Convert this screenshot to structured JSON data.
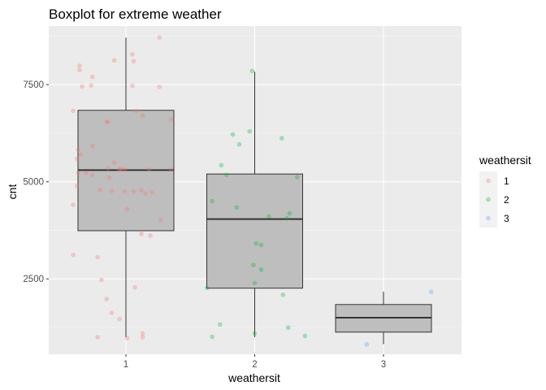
{
  "chart_data": {
    "type": "boxplot",
    "title": "Boxplot for extreme weather",
    "xlabel": "weathersit",
    "ylabel": "cnt",
    "categories": [
      "1",
      "2",
      "3"
    ],
    "y_ticks": [
      2500,
      5000,
      7500
    ],
    "y_tick_labels": [
      "2500",
      "5000",
      "7500"
    ],
    "ylim": [
      560,
      9010
    ],
    "grid": true,
    "legend": {
      "title": "weathersit",
      "position": "right",
      "entries": [
        {
          "label": "1",
          "color": "#F8766D"
        },
        {
          "label": "2",
          "color": "#00BA38"
        },
        {
          "label": "3",
          "color": "#619CFF"
        }
      ]
    },
    "colors": {
      "panel": "#EBEBEB",
      "grid_major": "#FFFFFF",
      "box_fill": "#BEBEBE",
      "box_line": "#333333",
      "text_tick": "#4D4D4D"
    },
    "boxes": [
      {
        "category": "1",
        "min": 1000,
        "q1": 3740,
        "median": 5300,
        "q3": 6840,
        "max": 8710
      },
      {
        "category": "2",
        "min": 1000,
        "q1": 2260,
        "median": 4040,
        "q3": 5200,
        "max": 7830
      },
      {
        "category": "3",
        "min": 820,
        "q1": 1130,
        "median": 1500,
        "q3": 1840,
        "max": 2170
      }
    ],
    "points": [
      {
        "group": "1",
        "x": 1.26,
        "y": 8712
      },
      {
        "group": "1",
        "x": 1.05,
        "y": 8276
      },
      {
        "group": "1",
        "x": 0.91,
        "y": 8125
      },
      {
        "group": "1",
        "x": 1.06,
        "y": 8104
      },
      {
        "group": "1",
        "x": 0.64,
        "y": 7991
      },
      {
        "group": "1",
        "x": 0.64,
        "y": 7878
      },
      {
        "group": "1",
        "x": 0.74,
        "y": 7700
      },
      {
        "group": "1",
        "x": 0.73,
        "y": 7480
      },
      {
        "group": "1",
        "x": 0.66,
        "y": 7452
      },
      {
        "group": "1",
        "x": 1.26,
        "y": 7442
      },
      {
        "group": "1",
        "x": 1.05,
        "y": 7472
      },
      {
        "group": "1",
        "x": 0.59,
        "y": 6827
      },
      {
        "group": "1",
        "x": 1.35,
        "y": 6607
      },
      {
        "group": "1",
        "x": 0.85,
        "y": 6547
      },
      {
        "group": "1",
        "x": 0.86,
        "y": 6541
      },
      {
        "group": "1",
        "x": 1.13,
        "y": 6703
      },
      {
        "group": "1",
        "x": 1.08,
        "y": 6824
      },
      {
        "group": "1",
        "x": 0.63,
        "y": 5828
      },
      {
        "group": "1",
        "x": 0.74,
        "y": 5917
      },
      {
        "group": "1",
        "x": 0.65,
        "y": 5700
      },
      {
        "group": "1",
        "x": 0.62,
        "y": 5592
      },
      {
        "group": "1",
        "x": 0.91,
        "y": 5488
      },
      {
        "group": "1",
        "x": 0.96,
        "y": 5335
      },
      {
        "group": "1",
        "x": 0.86,
        "y": 5345
      },
      {
        "group": "1",
        "x": 0.99,
        "y": 5313
      },
      {
        "group": "1",
        "x": 0.95,
        "y": 5313
      },
      {
        "group": "1",
        "x": 1.18,
        "y": 5318
      },
      {
        "group": "1",
        "x": 1.35,
        "y": 5315
      },
      {
        "group": "1",
        "x": 0.63,
        "y": 5230
      },
      {
        "group": "1",
        "x": 0.69,
        "y": 5230
      },
      {
        "group": "1",
        "x": 0.74,
        "y": 5169
      },
      {
        "group": "1",
        "x": 0.87,
        "y": 5107
      },
      {
        "group": "1",
        "x": 0.62,
        "y": 4891
      },
      {
        "group": "1",
        "x": 0.8,
        "y": 4791
      },
      {
        "group": "1",
        "x": 0.89,
        "y": 4764
      },
      {
        "group": "1",
        "x": 0.99,
        "y": 4750
      },
      {
        "group": "1",
        "x": 1.06,
        "y": 4741
      },
      {
        "group": "1",
        "x": 1.12,
        "y": 4776
      },
      {
        "group": "1",
        "x": 1.15,
        "y": 4701
      },
      {
        "group": "1",
        "x": 1.2,
        "y": 4727
      },
      {
        "group": "1",
        "x": 0.59,
        "y": 4410
      },
      {
        "group": "1",
        "x": 1.01,
        "y": 4295
      },
      {
        "group": "1",
        "x": 1.27,
        "y": 4023
      },
      {
        "group": "1",
        "x": 1.12,
        "y": 3657
      },
      {
        "group": "1",
        "x": 1.19,
        "y": 3613
      },
      {
        "group": "1",
        "x": 0.59,
        "y": 3114
      },
      {
        "group": "1",
        "x": 0.78,
        "y": 3059
      },
      {
        "group": "1",
        "x": 0.81,
        "y": 2475
      },
      {
        "group": "1",
        "x": 1.07,
        "y": 2280
      },
      {
        "group": "1",
        "x": 0.85,
        "y": 1983
      },
      {
        "group": "1",
        "x": 0.89,
        "y": 1627
      },
      {
        "group": "1",
        "x": 0.95,
        "y": 1467
      },
      {
        "group": "1",
        "x": 0.78,
        "y": 1000
      },
      {
        "group": "1",
        "x": 1.13,
        "y": 1091
      },
      {
        "group": "1",
        "x": 1.13,
        "y": 996
      },
      {
        "group": "1",
        "x": 1.01,
        "y": 975
      },
      {
        "group": "2",
        "x": 1.98,
        "y": 7852
      },
      {
        "group": "2",
        "x": 1.96,
        "y": 6297
      },
      {
        "group": "2",
        "x": 1.83,
        "y": 6216
      },
      {
        "group": "2",
        "x": 2.21,
        "y": 6120
      },
      {
        "group": "2",
        "x": 1.88,
        "y": 5962
      },
      {
        "group": "2",
        "x": 1.74,
        "y": 5427
      },
      {
        "group": "2",
        "x": 1.78,
        "y": 5177
      },
      {
        "group": "2",
        "x": 2.33,
        "y": 5119
      },
      {
        "group": "2",
        "x": 1.67,
        "y": 4500
      },
      {
        "group": "2",
        "x": 1.86,
        "y": 4338
      },
      {
        "group": "2",
        "x": 2.27,
        "y": 4185
      },
      {
        "group": "2",
        "x": 2.11,
        "y": 4110
      },
      {
        "group": "2",
        "x": 2.25,
        "y": 4057
      },
      {
        "group": "2",
        "x": 2.01,
        "y": 3411
      },
      {
        "group": "2",
        "x": 2.05,
        "y": 3372
      },
      {
        "group": "2",
        "x": 2.05,
        "y": 2738
      },
      {
        "group": "2",
        "x": 1.99,
        "y": 2857
      },
      {
        "group": "2",
        "x": 1.63,
        "y": 2268
      },
      {
        "group": "2",
        "x": 2.22,
        "y": 2090
      },
      {
        "group": "2",
        "x": 2.0,
        "y": 2395
      },
      {
        "group": "2",
        "x": 1.73,
        "y": 1326
      },
      {
        "group": "2",
        "x": 2.26,
        "y": 1246
      },
      {
        "group": "2",
        "x": 1.67,
        "y": 1008
      },
      {
        "group": "2",
        "x": 2.0,
        "y": 1096
      },
      {
        "group": "2",
        "x": 2.39,
        "y": 1032
      },
      {
        "group": "3",
        "x": 2.87,
        "y": 816
      },
      {
        "group": "3",
        "x": 3.37,
        "y": 2167
      }
    ]
  }
}
